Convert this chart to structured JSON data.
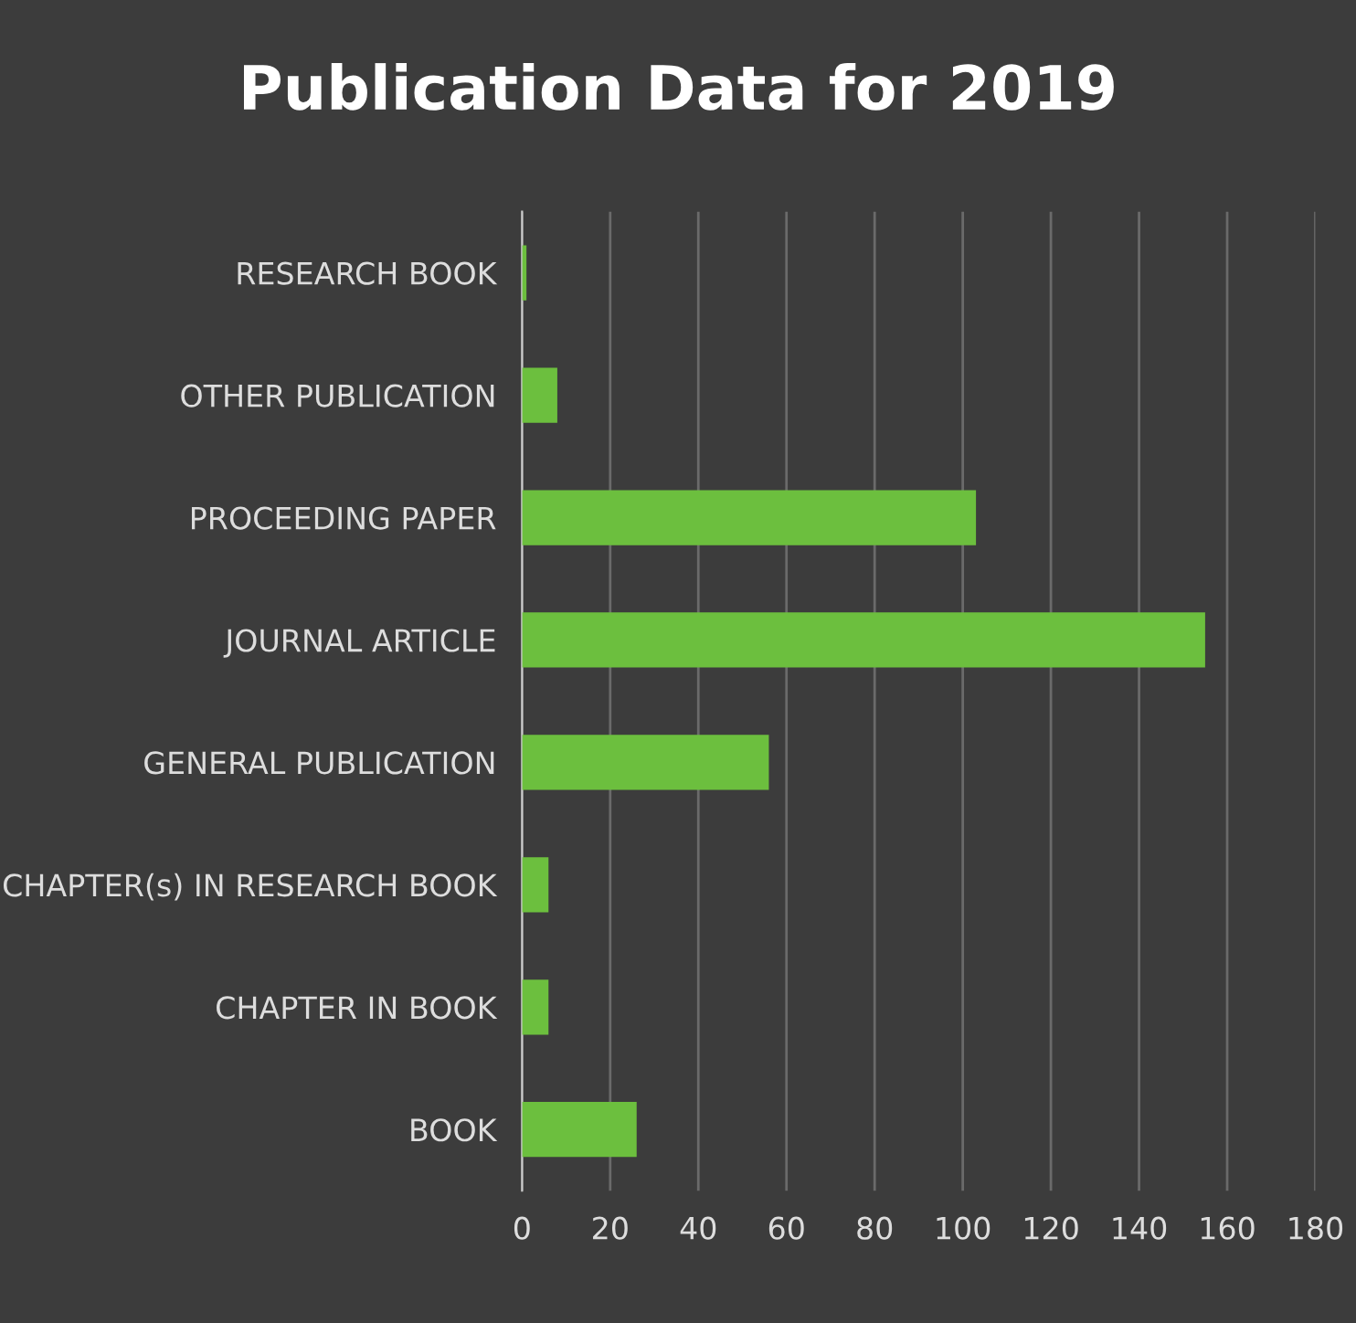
{
  "chart_data": {
    "type": "bar",
    "orientation": "horizontal",
    "title": "Publication Data for 2019",
    "categories": [
      "RESEARCH BOOK",
      "OTHER PUBLICATION",
      "PROCEEDING PAPER",
      "JOURNAL ARTICLE",
      "GENERAL PUBLICATION",
      "CHAPTER(s) IN RESEARCH BOOK",
      "CHAPTER IN BOOK",
      "BOOK"
    ],
    "values": [
      1,
      8,
      103,
      155,
      56,
      6,
      6,
      26
    ],
    "color": "#6cbf3e",
    "xlim": [
      0,
      180
    ],
    "xticks": [
      0,
      20,
      40,
      60,
      80,
      100,
      120,
      140,
      160,
      180
    ],
    "grid": "x"
  }
}
